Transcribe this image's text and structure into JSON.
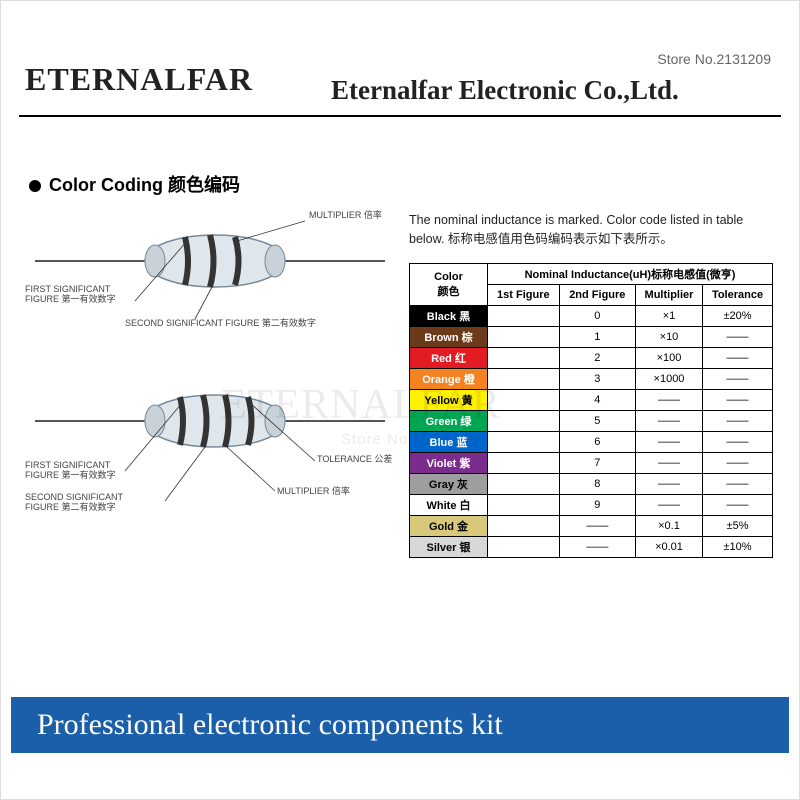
{
  "header": {
    "store_no": "Store No.2131209",
    "logo": "ETERNALFAR",
    "company": "Eternalfar Electronic Co.,Ltd."
  },
  "section_title": "Color Coding 颜色编码",
  "diagram_labels": {
    "first_sig": "FIRST SIGNIFICANT\nFIGURE 第一有效数字",
    "second_sig": "SECOND SIGNIFICANT FIGURE 第二有效数字",
    "multiplier": "MULTIPLIER 倍率",
    "tolerance": "TOLERANCE 公差",
    "second_sig_2line": "SECOND SIGNIFICANT\nFIGURE 第二有效数字"
  },
  "intro": "The nominal inductance is marked. Color code listed in table below. 标称电感值用色码编码表示如下表所示。",
  "table": {
    "head_color": "Color\n颜色",
    "head_main": "Nominal Inductance(uH)标称电感值(微亨)",
    "cols": [
      "1st Figure",
      "2nd Figure",
      "Multiplier",
      "Tolerance"
    ],
    "rows": [
      {
        "name": "Black 黑",
        "bg": "#000000",
        "fg": "#ffffff",
        "fig1": "",
        "fig2": "0",
        "mult": "×1",
        "tol": "±20%"
      },
      {
        "name": "Brown 棕",
        "bg": "#6b3a18",
        "fg": "#ffffff",
        "fig1": "",
        "fig2": "1",
        "mult": "×10",
        "tol": "——"
      },
      {
        "name": "Red 红",
        "bg": "#e31b23",
        "fg": "#ffffff",
        "fig1": "",
        "fig2": "2",
        "mult": "×100",
        "tol": "——"
      },
      {
        "name": "Orange 橙",
        "bg": "#f58220",
        "fg": "#ffffff",
        "fig1": "",
        "fig2": "3",
        "mult": "×1000",
        "tol": "——"
      },
      {
        "name": "Yellow 黄",
        "bg": "#fff200",
        "fg": "#000000",
        "fig1": "",
        "fig2": "4",
        "mult": "——",
        "tol": "——"
      },
      {
        "name": "Green 绿",
        "bg": "#00a651",
        "fg": "#ffffff",
        "fig1": "",
        "fig2": "5",
        "mult": "——",
        "tol": "——"
      },
      {
        "name": "Blue 蓝",
        "bg": "#0066cc",
        "fg": "#ffffff",
        "fig1": "",
        "fig2": "6",
        "mult": "——",
        "tol": "——"
      },
      {
        "name": "Violet 紫",
        "bg": "#7b2d8e",
        "fg": "#ffffff",
        "fig1": "",
        "fig2": "7",
        "mult": "——",
        "tol": "——"
      },
      {
        "name": "Gray 灰",
        "bg": "#9e9e9e",
        "fg": "#000000",
        "fig1": "",
        "fig2": "8",
        "mult": "——",
        "tol": "——"
      },
      {
        "name": "White 白",
        "bg": "#ffffff",
        "fg": "#000000",
        "fig1": "",
        "fig2": "9",
        "mult": "——",
        "tol": "——"
      },
      {
        "name": "Gold 金",
        "bg": "#d8c97a",
        "fg": "#000000",
        "fig1": "",
        "fig2": "——",
        "mult": "×0.1",
        "tol": "±5%"
      },
      {
        "name": "Silver 银",
        "bg": "#d8d8d8",
        "fg": "#000000",
        "fig1": "",
        "fig2": "——",
        "mult": "×0.01",
        "tol": "±10%"
      }
    ]
  },
  "watermark": "ETERNALFAR",
  "watermark_sub": "Store No.2131209",
  "footer": "Professional electronic components kit",
  "colors": {
    "footer_bg": "#1b5faa",
    "footer_fg": "#ffffff",
    "line": "#000000"
  }
}
